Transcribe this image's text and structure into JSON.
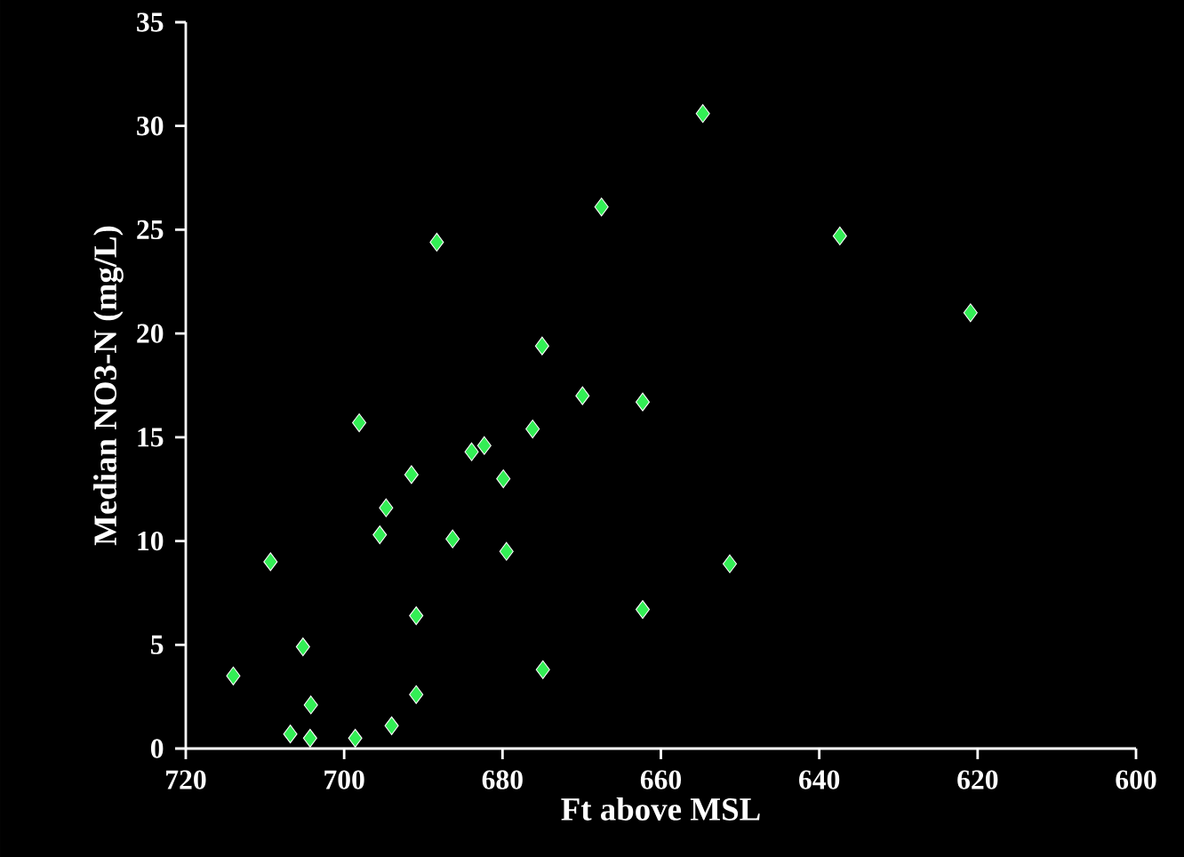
{
  "chart_data": {
    "type": "scatter",
    "xlabel": "Ft above MSL",
    "ylabel": "Median NO3-N (mg/L)",
    "x": [
      714,
      709.3,
      706.8,
      705.2,
      704.3,
      704.2,
      698.6,
      698.1,
      695.5,
      694.7,
      694,
      691.5,
      690.9,
      690.9,
      688.3,
      686.3,
      683.9,
      682.3,
      679.9,
      679.5,
      676.2,
      675,
      674.9,
      669.9,
      667.5,
      662.3,
      662.3,
      654.7,
      651.3,
      637.4,
      620.9
    ],
    "values": [
      3.5,
      9.0,
      0.7,
      4.9,
      0.5,
      2.1,
      0.5,
      15.7,
      10.3,
      11.6,
      1.1,
      13.2,
      6.4,
      2.6,
      24.4,
      10.1,
      14.3,
      14.6,
      13.0,
      9.5,
      15.4,
      19.4,
      3.8,
      17.0,
      26.1,
      16.7,
      6.7,
      30.6,
      8.9,
      24.7,
      21.0
    ],
    "color": "#33ee55",
    "marker": "diamond",
    "xlim": [
      720,
      600
    ],
    "xticks": [
      720,
      700,
      680,
      660,
      640,
      620,
      600
    ],
    "ylim": [
      0,
      35
    ],
    "yticks": [
      0,
      5,
      10,
      15,
      20,
      25,
      30,
      35
    ],
    "grid": false
  }
}
